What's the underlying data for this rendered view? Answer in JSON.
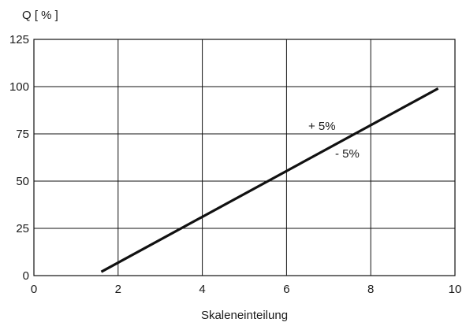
{
  "chart_data": {
    "type": "line",
    "title": "",
    "xlabel": "Skaleneinteilung",
    "ylabel": "Q [ % ]",
    "xlim": [
      0,
      10
    ],
    "ylim": [
      0,
      125
    ],
    "x_ticks": [
      0,
      2,
      4,
      6,
      8,
      10
    ],
    "y_ticks": [
      0,
      25,
      50,
      75,
      100,
      125
    ],
    "grid": true,
    "series": [
      {
        "x": [
          1.6,
          9.6
        ],
        "y": [
          2,
          99
        ]
      }
    ],
    "annotations": [
      "+ 5%",
      "- 5%"
    ],
    "colors": {
      "line": "#111111",
      "grid": "#111111"
    }
  }
}
